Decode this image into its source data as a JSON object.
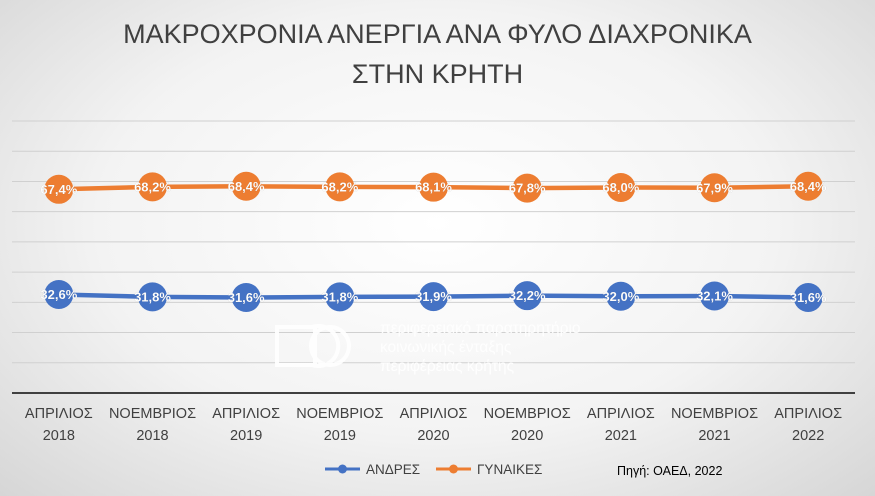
{
  "chart_data": {
    "type": "line",
    "title_lines": [
      "ΜΑΚΡΟΧΡΟΝΙΑ ΑΝΕΡΓΙΑ ΑΝΑ ΦΥΛΟ ΔΙΑΧΡΟΝΙΚΑ",
      "ΣΤΗΝ ΚΡΗΤΗ"
    ],
    "categories": [
      [
        "ΑΠΡΙΛΙΟΣ",
        "2018"
      ],
      [
        "ΝΟΕΜΒΡΙΟΣ",
        "2018"
      ],
      [
        "ΑΠΡΙΛΙΟΣ",
        "2019"
      ],
      [
        "ΝΟΕΜΒΡΙΟΣ",
        "2019"
      ],
      [
        "ΑΠΡΙΛΙΟΣ",
        "2020"
      ],
      [
        "ΝΟΕΜΒΡΙΟΣ",
        "2020"
      ],
      [
        "ΑΠΡΙΛΙΟΣ",
        "2021"
      ],
      [
        "ΝΟΕΜΒΡΙΟΣ",
        "2021"
      ],
      [
        "ΑΠΡΙΛΙΟΣ",
        "2022"
      ]
    ],
    "series": [
      {
        "name": "ΑΝΔΡΕΣ",
        "color": "#4472C4",
        "values": [
          32.6,
          31.8,
          31.6,
          31.8,
          31.9,
          32.2,
          32.0,
          32.1,
          31.6
        ],
        "labels": [
          "32,6%",
          "31,8%",
          "31,6%",
          "31,8%",
          "31,9%",
          "32,2%",
          "32,0%",
          "32,1%",
          "31,6%"
        ]
      },
      {
        "name": "ΓΥΝΑΙΚΕΣ",
        "color": "#ED7D31",
        "values": [
          67.4,
          68.2,
          68.4,
          68.2,
          68.1,
          67.8,
          68.0,
          67.9,
          68.4
        ],
        "labels": [
          "67,4%",
          "68,2%",
          "68,4%",
          "68,2%",
          "68,1%",
          "67,8%",
          "68,0%",
          "67,9%",
          "68,4%"
        ]
      }
    ],
    "ylim": [
      0,
      90
    ],
    "grid": true,
    "legend_position": "bottom",
    "source": "Πηγή: ΟΑΕΔ, 2022"
  },
  "watermark": {
    "logo_text": "ΠΟ",
    "lines": [
      "περιφερειακό παρατηρητήριο",
      "κοινωνικής ένταξης",
      "περιφέρειας κρήτης"
    ]
  }
}
